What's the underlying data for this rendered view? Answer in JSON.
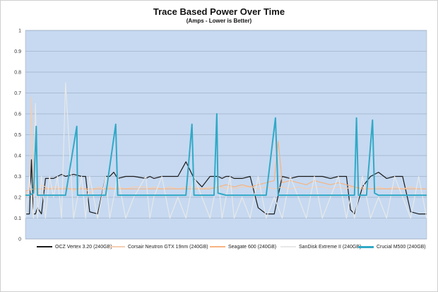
{
  "chart_data": {
    "type": "line",
    "title": "Trace Based Power Over Time",
    "subtitle": "(Amps - Lower is Better)",
    "ylim": [
      0,
      1
    ],
    "yticks": [
      "0",
      "0.1",
      "0.2",
      "0.3",
      "0.4",
      "0.5",
      "0.6",
      "0.7",
      "0.8",
      "0.9",
      "1"
    ],
    "grid": true,
    "legend_position": "bottom",
    "plot_background": "#c6d9f1",
    "series": [
      {
        "name": "OCZ Vertex 3.20 (240GB)",
        "color": "#1a1a1a",
        "x": [
          0,
          1,
          1.5,
          2,
          2.5,
          3,
          4,
          5,
          6,
          7,
          8,
          9,
          10,
          12,
          14,
          15,
          16,
          18,
          20,
          21,
          22,
          23,
          25,
          27,
          30,
          31,
          32,
          34,
          36,
          38,
          40,
          42,
          44,
          46,
          48,
          49,
          50,
          51,
          52,
          54,
          56,
          58,
          60,
          62,
          64,
          66,
          68,
          70,
          72,
          74,
          76,
          78,
          80,
          81,
          82,
          84,
          86,
          88,
          90,
          92,
          94,
          96,
          98,
          100
        ],
        "y": [
          0.12,
          0.12,
          0.38,
          0.12,
          0.12,
          0.15,
          0.12,
          0.29,
          0.29,
          0.29,
          0.3,
          0.31,
          0.3,
          0.31,
          0.3,
          0.3,
          0.13,
          0.12,
          0.3,
          0.3,
          0.32,
          0.29,
          0.3,
          0.3,
          0.29,
          0.3,
          0.29,
          0.3,
          0.3,
          0.3,
          0.37,
          0.29,
          0.25,
          0.3,
          0.3,
          0.29,
          0.3,
          0.3,
          0.29,
          0.29,
          0.3,
          0.15,
          0.12,
          0.12,
          0.3,
          0.29,
          0.3,
          0.3,
          0.3,
          0.3,
          0.29,
          0.3,
          0.3,
          0.14,
          0.12,
          0.25,
          0.3,
          0.32,
          0.29,
          0.3,
          0.3,
          0.13,
          0.12,
          0.12
        ]
      },
      {
        "name": "Corsair Neutron GTX 19nm (240GB)",
        "color": "#f4cdb0",
        "x": [
          0,
          1,
          1.5,
          2,
          2.5,
          3,
          4,
          5,
          6,
          7,
          8,
          9,
          10,
          12,
          14,
          15,
          16,
          18,
          20,
          21,
          22,
          23,
          25,
          27,
          30,
          31,
          32,
          34,
          36,
          38,
          40,
          42,
          44,
          46,
          48,
          49,
          50,
          51,
          52,
          54,
          56,
          58,
          60,
          62,
          64,
          66,
          68,
          70,
          72,
          74,
          76,
          78,
          80,
          81,
          82,
          84,
          86,
          88,
          90,
          92,
          94,
          96,
          98,
          100
        ],
        "y": [
          0.2,
          0.25,
          0.68,
          0.2,
          0.26,
          0.2,
          0.26,
          0.25,
          0.24,
          0.25,
          0.25,
          0.24,
          0.25,
          0.23,
          0.25,
          0.24,
          0.22,
          0.25,
          0.24,
          0.25,
          0.24,
          0.25,
          0.24,
          0.25,
          0.25,
          0.24,
          0.25,
          0.24,
          0.25,
          0.24,
          0.25,
          0.25,
          0.24,
          0.25,
          0.24,
          0.25,
          0.24,
          0.25,
          0.24,
          0.25,
          0.25,
          0.24,
          0.25,
          0.24,
          0.25,
          0.24,
          0.25,
          0.24,
          0.25,
          0.25,
          0.24,
          0.25,
          0.24,
          0.25,
          0.24,
          0.25,
          0.24,
          0.25,
          0.24,
          0.25,
          0.24,
          0.25,
          0.24,
          0.24
        ]
      },
      {
        "name": "Seagate 600 (240GB)",
        "color": "#f7b37f",
        "x": [
          0,
          2,
          4,
          6,
          8,
          10,
          12,
          14,
          16,
          18,
          20,
          22,
          24,
          26,
          28,
          30,
          32,
          34,
          36,
          38,
          40,
          42,
          44,
          46,
          48,
          50,
          52,
          54,
          56,
          58,
          60,
          62,
          63,
          64,
          66,
          68,
          70,
          72,
          74,
          76,
          78,
          80,
          82,
          84,
          86,
          88,
          90,
          92,
          94,
          96,
          98,
          100
        ],
        "y": [
          0.23,
          0.24,
          0.24,
          0.24,
          0.24,
          0.24,
          0.24,
          0.24,
          0.24,
          0.24,
          0.24,
          0.24,
          0.24,
          0.24,
          0.24,
          0.24,
          0.24,
          0.24,
          0.24,
          0.24,
          0.24,
          0.24,
          0.24,
          0.24,
          0.25,
          0.26,
          0.25,
          0.26,
          0.25,
          0.26,
          0.27,
          0.28,
          0.47,
          0.27,
          0.28,
          0.27,
          0.26,
          0.28,
          0.27,
          0.26,
          0.27,
          0.26,
          0.25,
          0.24,
          0.24,
          0.24,
          0.24,
          0.24,
          0.24,
          0.24,
          0.24,
          0.24
        ]
      },
      {
        "name": "SanDisk Extreme II (240GB)",
        "color": "#e8e8e8",
        "x": [
          0,
          1,
          2,
          2.5,
          3,
          4,
          5,
          6,
          7,
          8,
          9,
          10,
          12,
          14,
          15,
          16,
          18,
          20,
          21,
          22,
          23,
          25,
          27,
          30,
          31,
          32,
          34,
          36,
          38,
          40,
          42,
          44,
          46,
          48,
          49,
          50,
          51,
          52,
          54,
          56,
          58,
          60,
          62,
          64,
          66,
          68,
          70,
          72,
          74,
          76,
          78,
          80,
          81,
          82,
          84,
          86,
          88,
          90,
          92,
          94,
          96,
          98,
          100
        ],
        "y": [
          0.1,
          0.3,
          0.1,
          0.65,
          0.1,
          0.3,
          0.1,
          0.3,
          0.2,
          0.3,
          0.1,
          0.75,
          0.1,
          0.3,
          0.1,
          0.3,
          0.1,
          0.3,
          0.1,
          0.2,
          0.3,
          0.1,
          0.2,
          0.3,
          0.1,
          0.2,
          0.3,
          0.1,
          0.2,
          0.1,
          0.3,
          0.2,
          0.1,
          0.3,
          0.1,
          0.2,
          0.3,
          0.1,
          0.2,
          0.1,
          0.3,
          0.1,
          0.2,
          0.1,
          0.3,
          0.2,
          0.1,
          0.3,
          0.1,
          0.2,
          0.3,
          0.1,
          0.2,
          0.1,
          0.3,
          0.1,
          0.2,
          0.1,
          0.3,
          0.2,
          0.1,
          0.3,
          0.1
        ]
      },
      {
        "name": "Crucial M500 (240GB)",
        "color": "#31a9c6",
        "x": [
          0,
          1,
          2,
          2.7,
          3,
          5,
          10,
          12.8,
          13,
          14,
          15,
          20,
          22.5,
          23,
          24,
          30,
          35,
          40,
          41.5,
          42,
          43,
          45,
          47,
          47.7,
          48,
          50,
          55,
          60,
          62.3,
          63,
          65,
          70,
          75,
          80,
          82,
          82.5,
          83,
          85,
          86.5,
          87,
          88,
          90,
          95,
          100
        ],
        "y": [
          0.21,
          0.21,
          0.22,
          0.54,
          0.21,
          0.21,
          0.21,
          0.54,
          0.21,
          0.21,
          0.21,
          0.21,
          0.55,
          0.21,
          0.21,
          0.21,
          0.21,
          0.21,
          0.55,
          0.21,
          0.21,
          0.21,
          0.21,
          0.6,
          0.22,
          0.21,
          0.21,
          0.21,
          0.58,
          0.21,
          0.21,
          0.21,
          0.21,
          0.21,
          0.21,
          0.58,
          0.21,
          0.21,
          0.57,
          0.22,
          0.21,
          0.21,
          0.21,
          0.21
        ]
      }
    ]
  }
}
